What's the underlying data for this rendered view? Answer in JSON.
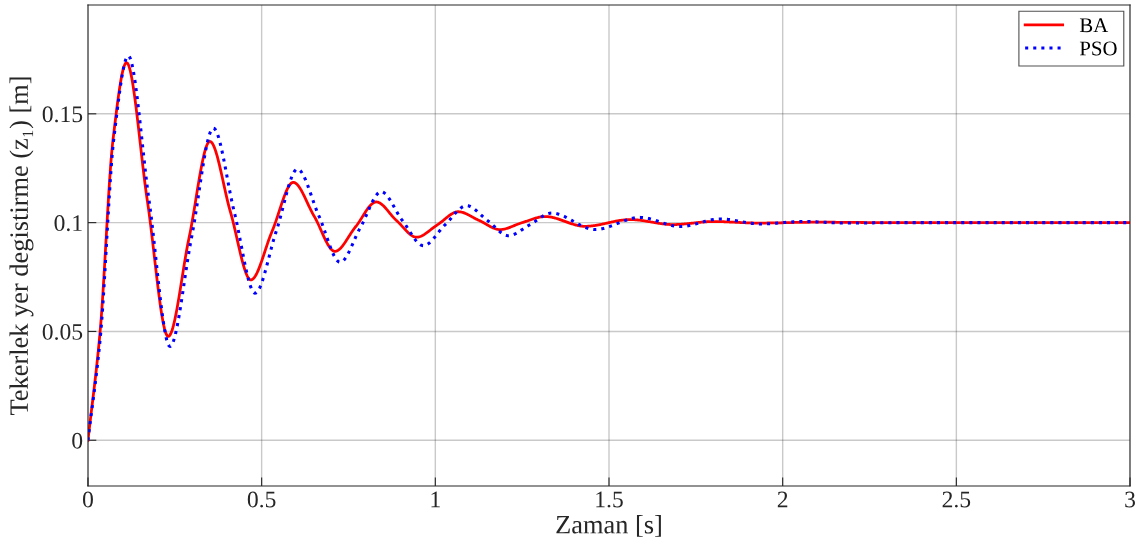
{
  "chart_data": {
    "type": "line",
    "xlabel": "Zaman [s]",
    "ylabel": "Tekerlek yer degistirme (z₁) [m]",
    "xlim": [
      0,
      3
    ],
    "xticks": [
      0,
      0.5,
      1,
      1.5,
      2,
      2.5,
      3
    ],
    "ylim": [
      -0.021,
      0.2
    ],
    "yticks": [
      0,
      0.05,
      0.1,
      0.15
    ],
    "grid": true,
    "legend": "top right",
    "marker": "none",
    "series": [
      {
        "name": "BA",
        "color": "#ff0000",
        "line_style": "solid",
        "x": [
          0,
          0.035,
          0.072,
          0.111,
          0.171,
          0.231,
          0.291,
          0.351,
          0.41,
          0.469,
          0.53,
          0.591,
          0.651,
          0.711,
          0.77,
          0.83,
          0.888,
          0.946,
          1.006,
          1.066,
          1.126,
          1.186,
          1.25,
          1.316,
          1.431,
          1.561,
          1.684,
          1.8,
          1.93,
          2.1,
          2.3,
          3
        ],
        "values": [
          0,
          0.05,
          0.138,
          0.1735,
          0.11,
          0.0477,
          0.093,
          0.1373,
          0.105,
          0.0737,
          0.096,
          0.1185,
          0.103,
          0.0868,
          0.098,
          0.1095,
          0.101,
          0.0933,
          0.099,
          0.105,
          0.101,
          0.0968,
          0.1,
          0.1028,
          0.0983,
          0.1014,
          0.0991,
          0.1005,
          0.0998,
          0.1002,
          0.1,
          0.1
        ]
      },
      {
        "name": "PSO",
        "color": "#0000ff",
        "line_style": "dotted",
        "x": [
          0,
          0.036,
          0.074,
          0.116,
          0.176,
          0.236,
          0.298,
          0.361,
          0.421,
          0.481,
          0.542,
          0.603,
          0.665,
          0.726,
          0.785,
          0.844,
          0.905,
          0.966,
          1.028,
          1.09,
          1.15,
          1.21,
          1.272,
          1.335,
          1.46,
          1.589,
          1.705,
          1.82,
          1.935,
          2.06,
          2.18,
          2.35,
          3
        ],
        "values": [
          0,
          0.048,
          0.138,
          0.1766,
          0.11,
          0.0431,
          0.093,
          0.1434,
          0.105,
          0.0676,
          0.096,
          0.1246,
          0.103,
          0.0818,
          0.098,
          0.1142,
          0.101,
          0.0894,
          0.099,
          0.1078,
          0.101,
          0.094,
          0.099,
          0.1044,
          0.0968,
          0.1024,
          0.0982,
          0.1017,
          0.0994,
          0.1005,
          0.0998,
          0.1,
          0.1
        ]
      }
    ]
  }
}
